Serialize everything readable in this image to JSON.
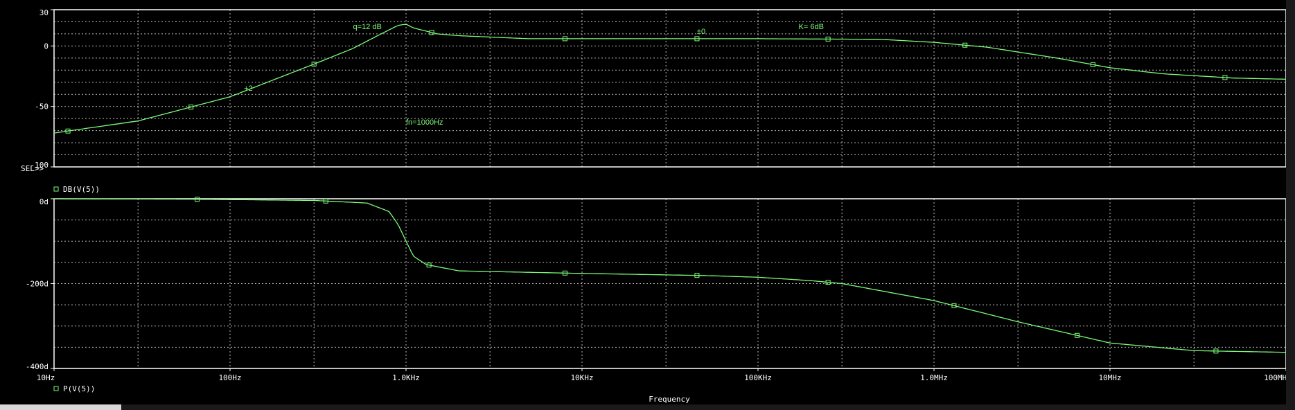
{
  "colors": {
    "trace": "#7dfc7a",
    "axis": "#ffffff",
    "grid": "#bdbdbd",
    "background": "#000000"
  },
  "labels": {
    "sel": "SEL>>",
    "xlabel": "Frequency"
  },
  "chart_data": [
    {
      "type": "line",
      "name": "top-magnitude-plot",
      "legend": "DB(V(5))",
      "xscale": "log",
      "xlim": [
        10,
        100000000
      ],
      "ylim": [
        -100,
        30
      ],
      "yticks": [
        {
          "value": 30,
          "label": "30"
        },
        {
          "value": 0,
          "label": "0"
        },
        {
          "value": -50,
          "label": "-50"
        },
        {
          "value": -100,
          "label": "-100"
        }
      ],
      "series": [
        {
          "name": "DB(V(5))",
          "x": [
            10,
            30,
            100,
            300,
            500,
            700,
            900,
            1000,
            1100,
            1500,
            2000,
            5000,
            10000,
            50000,
            100000,
            500000,
            1000000,
            2000000,
            5000000,
            10000000,
            20000000,
            50000000,
            100000000
          ],
          "y": [
            -72,
            -62,
            -42,
            -15,
            -2,
            9,
            17,
            18,
            15,
            10,
            8.5,
            6,
            6,
            6,
            6,
            5.5,
            3,
            -1,
            -10,
            -18,
            -23,
            -26.5,
            -27.5
          ]
        }
      ],
      "markers": {
        "x": [
          12,
          60,
          300,
          1400,
          8000,
          45000,
          250000,
          1500000,
          8000000,
          45000000
        ]
      },
      "annotations": [
        {
          "text": "q=12 dB",
          "x": 500,
          "y": 14
        },
        {
          "text": "±0",
          "x": 45000,
          "y": 10
        },
        {
          "text": "K= 6dB",
          "x": 170000,
          "y": 14
        },
        {
          "text": "+2",
          "x": 120,
          "y": -37
        },
        {
          "text": "fn=1000Hz",
          "x": 1000,
          "y": -65
        }
      ]
    },
    {
      "type": "line",
      "name": "bottom-phase-plot",
      "legend": "P(V(5))",
      "xscale": "log",
      "xlim": [
        10,
        100000000
      ],
      "ylim": [
        -400,
        0
      ],
      "yticks": [
        {
          "value": 0,
          "label": "0d"
        },
        {
          "value": -200,
          "label": "-200d"
        },
        {
          "value": -400,
          "label": "-400d"
        }
      ],
      "xticks": [
        {
          "value": 10,
          "label": "10Hz"
        },
        {
          "value": 100,
          "label": "100Hz"
        },
        {
          "value": 1000,
          "label": "1.0KHz"
        },
        {
          "value": 10000,
          "label": "10KHz"
        },
        {
          "value": 100000,
          "label": "100KHz"
        },
        {
          "value": 1000000,
          "label": "1.0MHz"
        },
        {
          "value": 10000000,
          "label": "10MHz"
        },
        {
          "value": 100000000,
          "label": "100MHz"
        }
      ],
      "series": [
        {
          "name": "P(V(5))",
          "x": [
            10,
            60,
            300,
            600,
            800,
            900,
            1000,
            1100,
            1300,
            2000,
            10000,
            50000,
            100000,
            200000,
            300000,
            1000000,
            3000000,
            10000000,
            30000000,
            100000000
          ],
          "y": [
            0,
            -1,
            -4,
            -10,
            -30,
            -60,
            -100,
            -135,
            -155,
            -170,
            -176,
            -181,
            -185,
            -193,
            -200,
            -240,
            -290,
            -340,
            -358,
            -362
          ]
        }
      ],
      "markers": {
        "x": [
          65,
          350,
          1350,
          8000,
          45000,
          250000,
          1300000,
          6500000,
          40000000
        ]
      }
    }
  ]
}
